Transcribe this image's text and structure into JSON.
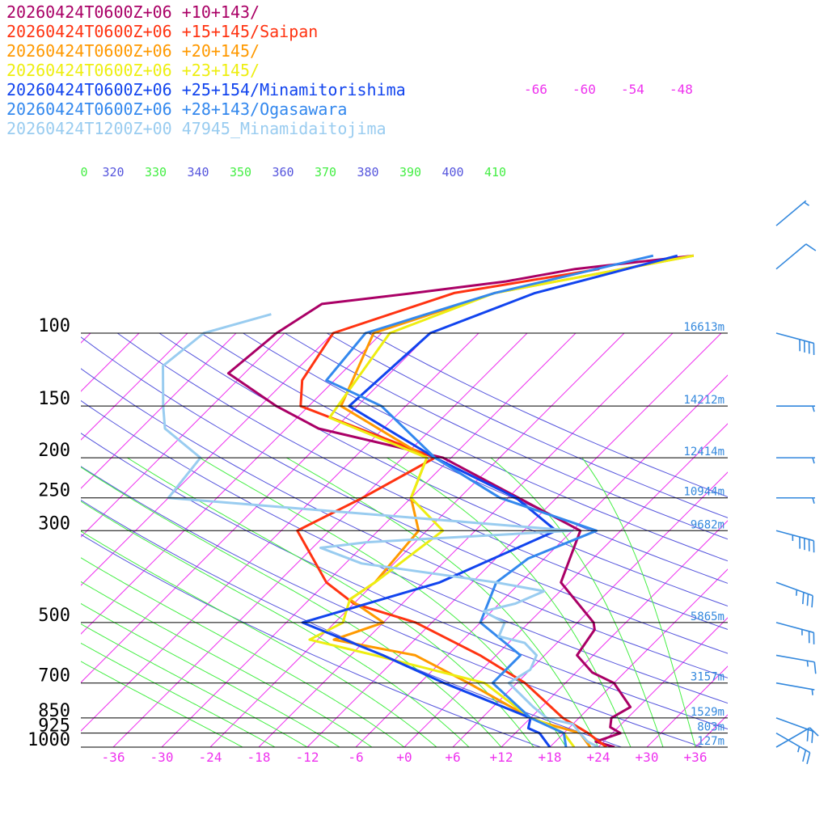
{
  "chart_data": {
    "type": "line",
    "subtype": "skew-t log-p sounding",
    "legend_placement": "top-left",
    "legend": [
      {
        "label": "20260424T0600Z+06 +10+143/",
        "color": "#aa0066"
      },
      {
        "label": "20260424T0600Z+06 +15+145/Saipan",
        "color": "#ff3311"
      },
      {
        "label": "20260424T0600Z+06 +20+145/",
        "color": "#ff9900"
      },
      {
        "label": "20260424T0600Z+06 +23+145/",
        "color": "#eeee11"
      },
      {
        "label": "20260424T0600Z+06 +25+154/Minamitorishima",
        "color": "#1144ee"
      },
      {
        "label": "20260424T0600Z+06 +28+143/Ogasawara",
        "color": "#3388ee"
      },
      {
        "label": "20260424T1200Z+00 47945_Minamidaitojima",
        "color": "#99ccf0"
      }
    ],
    "pressure_axis": {
      "ticks": [
        100,
        150,
        200,
        250,
        300,
        500,
        700,
        850,
        925,
        1000
      ],
      "tick_labels": [
        "100",
        "150",
        "200",
        "250",
        "300",
        "500",
        "700",
        "850",
        "925",
        "1000"
      ],
      "range": [
        1000,
        100
      ]
    },
    "temperature_axis": {
      "ticks": [
        -36,
        -30,
        -24,
        -18,
        -12,
        -6,
        0,
        6,
        12,
        18,
        24,
        30,
        36
      ],
      "tick_labels": [
        "-36",
        "-30",
        "-24",
        "-18",
        "-12",
        "-6",
        "+0",
        "+6",
        "+12",
        "+18",
        "+24",
        "+30",
        "+36"
      ],
      "range": [
        -40,
        40
      ]
    },
    "upper_isotherm_labels": [
      "-66",
      "-60",
      "-54",
      "-48"
    ],
    "theta_labels": [
      "320",
      "330",
      "340",
      "350",
      "360",
      "370",
      "380",
      "390",
      "400",
      "410"
    ],
    "theta_labels_clipped": [
      "0"
    ],
    "height_labels": [
      {
        "p": 100,
        "text": "16613m"
      },
      {
        "p": 150,
        "text": "14212m"
      },
      {
        "p": 200,
        "text": "12414m"
      },
      {
        "p": 250,
        "text": "10944m"
      },
      {
        "p": 300,
        "text": "9682m"
      },
      {
        "p": 500,
        "text": "5865m"
      },
      {
        "p": 700,
        "text": "3157m"
      },
      {
        "p": 850,
        "text": "1529m"
      },
      {
        "p": 925,
        "text": "803m"
      },
      {
        "p": 1000,
        "text": "127m"
      }
    ],
    "series": [
      {
        "name": "20260424T0600Z+06 +10+143/",
        "color": "#aa0066",
        "points": [
          [
            1000,
            26
          ],
          [
            970,
            23
          ],
          [
            925,
            25
          ],
          [
            895,
            23
          ],
          [
            850,
            22
          ],
          [
            800,
            23
          ],
          [
            700,
            18
          ],
          [
            660,
            14
          ],
          [
            600,
            10
          ],
          [
            520,
            9
          ],
          [
            500,
            8
          ],
          [
            400,
            -1
          ],
          [
            300,
            -5
          ],
          [
            200,
            -31
          ],
          [
            170,
            -50
          ],
          [
            150,
            -58
          ],
          [
            125,
            -68
          ],
          [
            100,
            -67
          ],
          [
            85,
            -65
          ],
          [
            80,
            -55
          ],
          [
            75,
            -45
          ],
          [
            70,
            -38
          ],
          [
            65,
            -25
          ]
        ]
      },
      {
        "name": "20260424T0600Z+06 +15+145/Saipan",
        "color": "#ff3311",
        "points": [
          [
            1000,
            25
          ],
          [
            925,
            21
          ],
          [
            850,
            16
          ],
          [
            700,
            7
          ],
          [
            600,
            -2
          ],
          [
            500,
            -14
          ],
          [
            450,
            -24
          ],
          [
            400,
            -30
          ],
          [
            300,
            -40
          ],
          [
            250,
            -36
          ],
          [
            200,
            -32
          ],
          [
            150,
            -55
          ],
          [
            130,
            -58
          ],
          [
            100,
            -60
          ],
          [
            80,
            -50
          ],
          [
            70,
            -35
          ]
        ]
      },
      {
        "name": "20260424T0600Z+06 +20+145/",
        "color": "#ff9900",
        "points": [
          [
            1000,
            23
          ],
          [
            925,
            20
          ],
          [
            880,
            15
          ],
          [
            850,
            12
          ],
          [
            700,
            0
          ],
          [
            600,
            -10
          ],
          [
            550,
            -22
          ],
          [
            500,
            -18
          ],
          [
            440,
            -25
          ],
          [
            400,
            -24
          ],
          [
            300,
            -25
          ],
          [
            250,
            -30
          ],
          [
            200,
            -33
          ],
          [
            150,
            -50
          ],
          [
            100,
            -55
          ],
          [
            80,
            -45
          ],
          [
            65,
            -25
          ]
        ]
      },
      {
        "name": "20260424T0600Z+06 +23+145/",
        "color": "#eeee11",
        "points": [
          [
            1000,
            21
          ],
          [
            925,
            18
          ],
          [
            870,
            14
          ],
          [
            850,
            12
          ],
          [
            700,
            2
          ],
          [
            600,
            -15
          ],
          [
            550,
            -25
          ],
          [
            500,
            -23
          ],
          [
            440,
            -25
          ],
          [
            400,
            -24
          ],
          [
            300,
            -22
          ],
          [
            250,
            -30
          ],
          [
            200,
            -33
          ],
          [
            160,
            -50
          ],
          [
            100,
            -53
          ],
          [
            80,
            -45
          ],
          [
            65,
            -25
          ]
        ]
      },
      {
        "name": "20260424T0600Z+06 +25+154/Minamitorishima",
        "color": "#1144ee",
        "points": [
          [
            1000,
            18
          ],
          [
            925,
            15
          ],
          [
            900,
            13
          ],
          [
            850,
            12
          ],
          [
            700,
            -3
          ],
          [
            600,
            -14
          ],
          [
            500,
            -28
          ],
          [
            400,
            -16
          ],
          [
            300,
            -8
          ],
          [
            250,
            -17
          ],
          [
            200,
            -32
          ],
          [
            150,
            -49
          ],
          [
            100,
            -48
          ],
          [
            80,
            -40
          ],
          [
            65,
            -27
          ]
        ]
      },
      {
        "name": "20260424T0600Z+06 +28+143/Ogasawara",
        "color": "#3388ee",
        "points": [
          [
            1000,
            20
          ],
          [
            925,
            18
          ],
          [
            850,
            12
          ],
          [
            700,
            3
          ],
          [
            600,
            3
          ],
          [
            500,
            -6
          ],
          [
            400,
            -9
          ],
          [
            350,
            -8
          ],
          [
            300,
            -3
          ],
          [
            250,
            -19
          ],
          [
            200,
            -32
          ],
          [
            150,
            -45
          ],
          [
            130,
            -55
          ],
          [
            100,
            -56
          ],
          [
            80,
            -45
          ],
          [
            65,
            -30
          ]
        ]
      },
      {
        "name": "20260424T1200Z+00 47945_Minamidaitojima",
        "color": "#99ccf0",
        "points": [
          [
            1000,
            24
          ],
          [
            970,
            22
          ],
          [
            925,
            20
          ],
          [
            880,
            18
          ],
          [
            850,
            14
          ],
          [
            800,
            11
          ],
          [
            700,
            5
          ],
          [
            650,
            6
          ],
          [
            600,
            5
          ],
          [
            560,
            2
          ],
          [
            540,
            -2
          ],
          [
            500,
            -3
          ],
          [
            470,
            -7
          ],
          [
            450,
            -4
          ],
          [
            420,
            -2
          ],
          [
            400,
            -9
          ],
          [
            360,
            -28
          ],
          [
            330,
            -35
          ],
          [
            320,
            -30
          ],
          [
            300,
            -6
          ],
          [
            250,
            -60
          ],
          [
            200,
            -61
          ],
          [
            170,
            -69
          ],
          [
            150,
            -72
          ],
          [
            120,
            -77
          ],
          [
            100,
            -76
          ],
          [
            90,
            -70
          ]
        ]
      }
    ],
    "wind_barbs": [
      {
        "p": 1000,
        "speed_kt": 10,
        "dir_deg": 240
      },
      {
        "p": 925,
        "speed_kt": 25,
        "dir_deg": 300
      },
      {
        "p": 850,
        "speed_kt": 20,
        "dir_deg": 290
      },
      {
        "p": 700,
        "speed_kt": 5,
        "dir_deg": 280
      },
      {
        "p": 600,
        "speed_kt": 15,
        "dir_deg": 280
      },
      {
        "p": 500,
        "speed_kt": 25,
        "dir_deg": 285
      },
      {
        "p": 400,
        "speed_kt": 35,
        "dir_deg": 290
      },
      {
        "p": 300,
        "speed_kt": 45,
        "dir_deg": 285
      },
      {
        "p": 250,
        "speed_kt": 5,
        "dir_deg": 270
      },
      {
        "p": 200,
        "speed_kt": 5,
        "dir_deg": 270
      },
      {
        "p": 150,
        "speed_kt": 5,
        "dir_deg": 270
      },
      {
        "p": 100,
        "speed_kt": 40,
        "dir_deg": 285
      },
      {
        "p": 70,
        "speed_kt": 10,
        "dir_deg": 230
      },
      {
        "p": 55,
        "speed_kt": 5,
        "dir_deg": 230
      }
    ],
    "colors": {
      "isotherm": "#ee33ee",
      "dry_adiabat": "#5555dd",
      "moist_adiabat": "#44ee44",
      "isobar": "#000000",
      "height_label": "#3388dd",
      "wind_barb": "#3388dd"
    }
  }
}
